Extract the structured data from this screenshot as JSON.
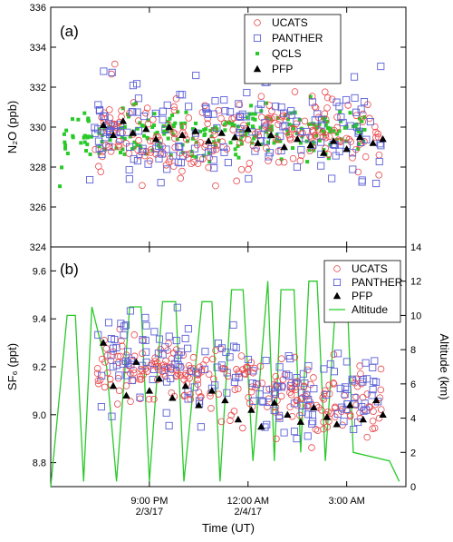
{
  "chart_data": [
    {
      "type": "scatter",
      "panel_label": "(a)",
      "ylabel": "N₂O (ppb)",
      "ylim": [
        324,
        336
      ],
      "yticks": [
        324,
        326,
        328,
        330,
        332,
        334,
        336
      ],
      "x_range_hours": [
        18.0,
        28.8
      ],
      "legend_position": "top-right",
      "series": [
        {
          "name": "UCATS",
          "marker": "open-circle",
          "color": "#e8474c",
          "center": 329.6,
          "spread": 1.0,
          "x_start": 19.35,
          "x_end": 28.05,
          "n": 230,
          "seed": 11
        },
        {
          "name": "PANTHER",
          "marker": "open-square",
          "color": "#5b60d6",
          "center": 330.1,
          "spread": 1.3,
          "x_start": 19.1,
          "x_end": 28.05,
          "n": 170,
          "seed": 23
        },
        {
          "name": "QCLS",
          "marker": "filled-square",
          "color": "#29c929",
          "center": 329.7,
          "spread": 0.6,
          "x_start": 18.25,
          "x_end": 27.6,
          "n": 260,
          "seed": 37
        },
        {
          "name": "PFP",
          "marker": "filled-triangle",
          "color": "#000000",
          "x": [
            19.6,
            19.9,
            20.2,
            20.5,
            20.9,
            21.2,
            21.6,
            22.0,
            22.4,
            22.8,
            23.2,
            23.6,
            24.0,
            24.3,
            24.7,
            25.1,
            25.5,
            25.9,
            26.3,
            26.6,
            27.0,
            27.4,
            27.8,
            28.1
          ],
          "y": [
            330.1,
            329.6,
            330.3,
            329.7,
            329.9,
            329.4,
            330.0,
            329.6,
            329.8,
            329.3,
            329.7,
            329.5,
            329.9,
            329.2,
            329.6,
            329.0,
            329.4,
            329.1,
            328.7,
            329.3,
            328.9,
            329.5,
            329.2,
            329.4
          ]
        }
      ]
    },
    {
      "type": "scatter",
      "panel_label": "(b)",
      "ylabel": "SF₆ (ppt)",
      "y2label": "Altitude (km)",
      "ylim": [
        8.7,
        9.7
      ],
      "yticks": [
        8.8,
        9.0,
        9.2,
        9.4,
        9.6
      ],
      "y2lim": [
        0,
        14
      ],
      "y2ticks": [
        0,
        2,
        4,
        6,
        8,
        10,
        12,
        14
      ],
      "xlabel": "Time (UT)",
      "xticks": [
        {
          "x": 21,
          "label": "9:00 PM",
          "sub": "2/3/17"
        },
        {
          "x": 24,
          "label": "12:00 AM",
          "sub": "2/4/17"
        },
        {
          "x": 27,
          "label": "3:00 AM",
          "sub": ""
        }
      ],
      "x_range_hours": [
        18.0,
        28.8
      ],
      "legend_position": "top-right",
      "series": [
        {
          "name": "UCATS",
          "marker": "open-circle",
          "color": "#e8474c",
          "n": 260,
          "seed": 53,
          "x_start": 19.35,
          "x_end": 28.05,
          "trend": [
            [
              19.3,
              9.22
            ],
            [
              22.0,
              9.17
            ],
            [
              24.2,
              9.1
            ],
            [
              26.0,
              9.06
            ],
            [
              28.0,
              9.06
            ]
          ],
          "spread": 0.07
        },
        {
          "name": "PANTHER",
          "marker": "open-square",
          "color": "#5b60d6",
          "n": 170,
          "seed": 71,
          "x_start": 19.35,
          "x_end": 28.05,
          "trend": [
            [
              19.3,
              9.26
            ],
            [
              22.0,
              9.22
            ],
            [
              24.2,
              9.15
            ],
            [
              26.0,
              9.08
            ],
            [
              28.0,
              9.08
            ]
          ],
          "spread": 0.1
        },
        {
          "name": "PFP",
          "marker": "filled-triangle",
          "color": "#000000",
          "x": [
            19.6,
            19.9,
            20.3,
            20.6,
            21.0,
            21.3,
            21.7,
            22.1,
            22.5,
            22.9,
            23.3,
            23.7,
            24.1,
            24.4,
            24.8,
            25.2,
            25.6,
            26.0,
            26.4,
            26.7,
            27.1,
            27.5,
            27.9,
            28.1
          ],
          "y": [
            9.3,
            9.12,
            9.08,
            9.22,
            9.1,
            9.15,
            9.07,
            9.12,
            9.04,
            9.1,
            9.06,
            8.98,
            9.02,
            8.95,
            9.05,
            9.0,
            8.97,
            9.03,
            8.99,
            8.96,
            9.04,
            8.98,
            9.06,
            9.0
          ]
        },
        {
          "name": "Altitude",
          "marker": "line",
          "color": "#29c929",
          "axis": "right",
          "x": [
            18.0,
            18.5,
            18.75,
            19.0,
            19.25,
            19.7,
            20.0,
            20.4,
            20.75,
            21.0,
            21.4,
            21.8,
            22.05,
            22.6,
            22.9,
            23.15,
            23.5,
            23.85,
            24.15,
            24.6,
            24.8,
            25.0,
            25.4,
            25.6,
            25.85,
            26.1,
            26.35,
            26.7,
            27.0,
            27.2,
            28.3,
            28.6
          ],
          "y": [
            0,
            10.0,
            10.0,
            0.3,
            10.5,
            7.0,
            0.3,
            10.5,
            10.5,
            0.3,
            10.8,
            10.8,
            0.3,
            10.8,
            10.8,
            0.3,
            11.5,
            11.5,
            1.5,
            12.0,
            1.5,
            11.5,
            11.5,
            2.0,
            12.0,
            12.0,
            1.5,
            11.8,
            11.8,
            2.0,
            1.5,
            0.3
          ]
        }
      ]
    }
  ]
}
